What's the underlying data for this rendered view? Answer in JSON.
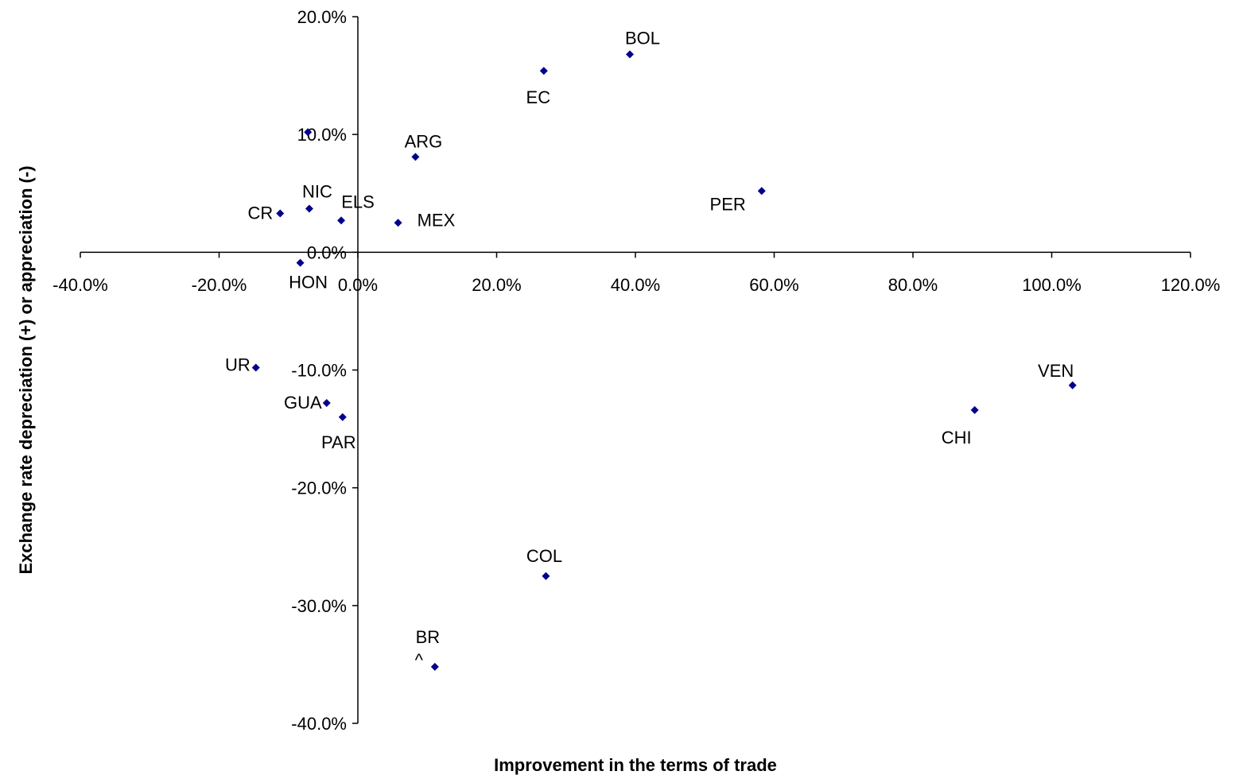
{
  "chart_data": {
    "type": "scatter",
    "xlabel": "Improvement in the terms of trade",
    "ylabel": "Exchange rate depreciation (+) or appreciation (-)",
    "xlim": [
      -40,
      120
    ],
    "ylim": [
      -40,
      20
    ],
    "x_ticks": [
      -40,
      -20,
      0,
      20,
      40,
      60,
      80,
      100,
      120
    ],
    "y_ticks": [
      20,
      10,
      0,
      -10,
      -20,
      -30,
      -40
    ],
    "x_tick_labels": [
      "-40.0%",
      "-20.0%",
      "0.0%",
      "20.0%",
      "40.0%",
      "60.0%",
      "80.0%",
      "100.0%",
      "120.0%"
    ],
    "y_tick_labels": [
      "20.0%",
      "10.0%",
      "0.0%",
      "-10.0%",
      "-20.0%",
      "-30.0%",
      "-40.0%"
    ],
    "grid": false,
    "legend": "none",
    "marker_color": "#00008B",
    "points": [
      {
        "label": "BOL",
        "x": 39.2,
        "y": 16.8
      },
      {
        "label": "EC",
        "x": 26.8,
        "y": 15.4
      },
      {
        "label": "ARG",
        "x": 8.3,
        "y": 8.1
      },
      {
        "label": "",
        "x": -7.2,
        "y": 10.2
      },
      {
        "label": "PER",
        "x": 58.2,
        "y": 5.2
      },
      {
        "label": "CR",
        "x": -11.2,
        "y": 3.3
      },
      {
        "label": "NIC",
        "x": -7.0,
        "y": 3.7
      },
      {
        "label": "ELS",
        "x": -2.4,
        "y": 2.7
      },
      {
        "label": "MEX",
        "x": 5.8,
        "y": 2.5
      },
      {
        "label": "HON",
        "x": -8.3,
        "y": -0.9
      },
      {
        "label": "UR",
        "x": -14.7,
        "y": -9.8
      },
      {
        "label": "GUA",
        "x": -4.5,
        "y": -12.8
      },
      {
        "label": "PAR",
        "x": -2.2,
        "y": -14.0
      },
      {
        "label": "VEN",
        "x": 103.0,
        "y": -11.3
      },
      {
        "label": "CHI",
        "x": 88.9,
        "y": -13.4
      },
      {
        "label": "COL",
        "x": 27.1,
        "y": -27.5
      },
      {
        "label": "BR",
        "x": 11.1,
        "y": -35.2
      }
    ],
    "annotations": [
      {
        "text": "^",
        "x": 8.8,
        "y": -34.6
      }
    ]
  }
}
